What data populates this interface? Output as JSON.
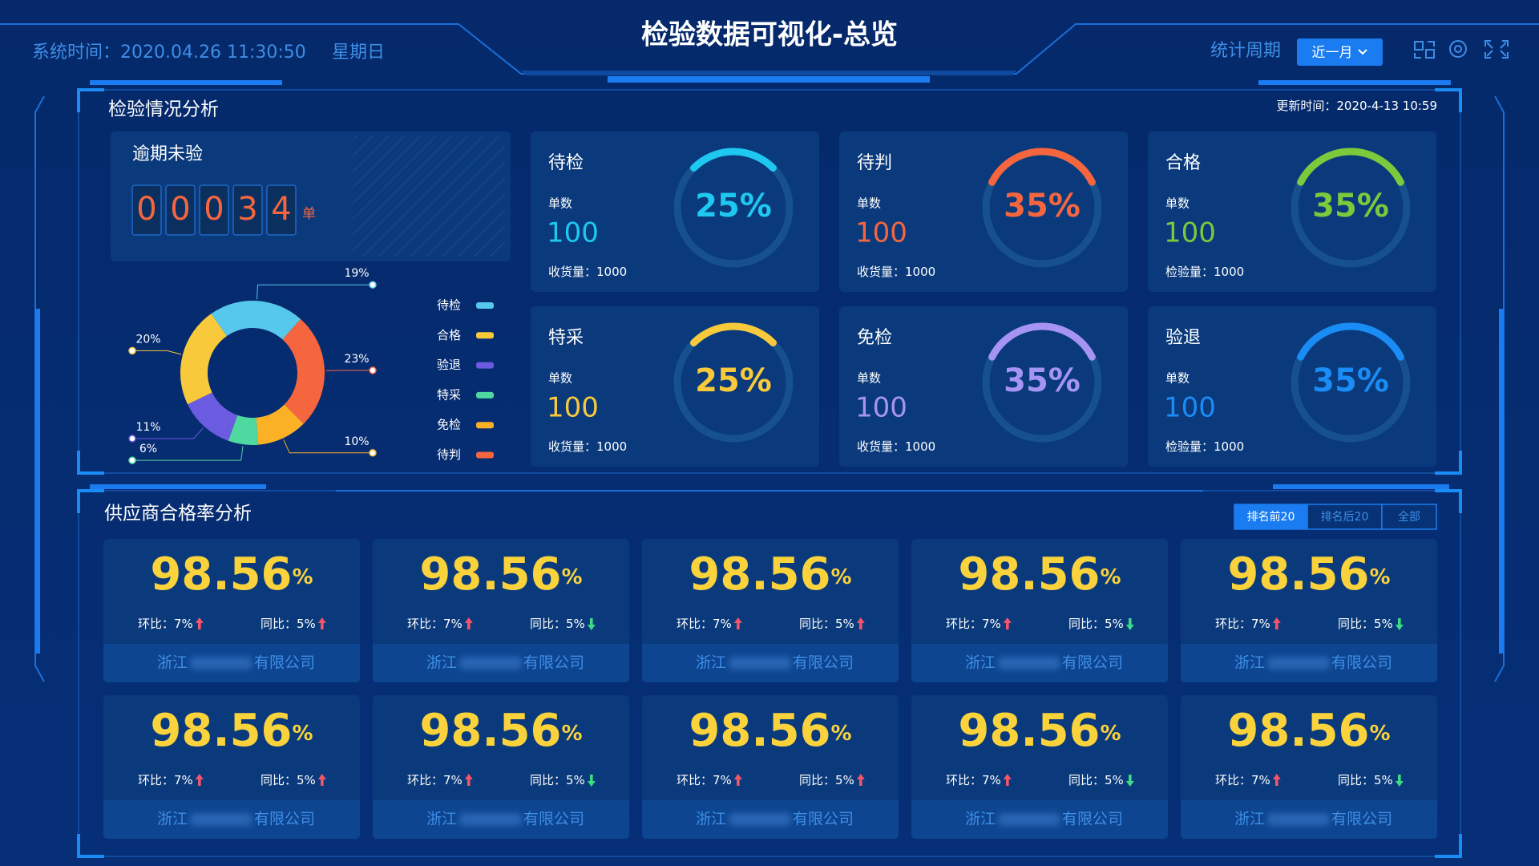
{
  "header": {
    "title": "检验数据可视化-总览",
    "time_label": "系统时间：",
    "time": "2020.04.26 11:30:50",
    "weekday": "星期日",
    "period_label": "统计周期",
    "period": "近一月"
  },
  "inspection": {
    "title": "检验情况分析",
    "update_label": "更新时间：",
    "update_time": "2020-4-13 10:59",
    "overdue": {
      "label": "逾期未验",
      "digits": [
        "0",
        "0",
        "0",
        "3",
        "4"
      ],
      "unit": "单"
    },
    "distribution": {
      "legend": [
        {
          "name": "待检",
          "color": "#56c8ec"
        },
        {
          "name": "合格",
          "color": "#f8c93a"
        },
        {
          "name": "验退",
          "color": "#6a5be0"
        },
        {
          "name": "特采",
          "color": "#4fd8a0"
        },
        {
          "name": "免检",
          "color": "#fbb126"
        },
        {
          "name": "待判",
          "color": "#f5663f"
        }
      ],
      "segments": [
        {
          "value": 19,
          "label": "19%",
          "color": "#56c8ec"
        },
        {
          "value": 23,
          "label": "23%",
          "color": "#f5663f"
        },
        {
          "value": 10,
          "label": "10%",
          "color": "#fbb126"
        },
        {
          "value": 6,
          "label": "6%",
          "color": "#4fd8a0"
        },
        {
          "value": 11,
          "label": "11%",
          "color": "#6a5be0"
        },
        {
          "value": 20,
          "label": "20%",
          "color": "#f8c93a"
        }
      ]
    },
    "cards": [
      {
        "name": "待检",
        "count_label": "单数",
        "count": "100",
        "sub_label": "收货量：",
        "sub_value": "1000",
        "percent": 25,
        "percent_label": "25%",
        "color": "#1ec8f0"
      },
      {
        "name": "待判",
        "count_label": "单数",
        "count": "100",
        "sub_label": "收货量：",
        "sub_value": "1000",
        "percent": 35,
        "percent_label": "35%",
        "color": "#f5663f"
      },
      {
        "name": "合格",
        "count_label": "单数",
        "count": "100",
        "sub_label": "检验量：",
        "sub_value": "1000",
        "percent": 35,
        "percent_label": "35%",
        "color": "#7cc93c"
      },
      {
        "name": "特采",
        "count_label": "单数",
        "count": "100",
        "sub_label": "收货量：",
        "sub_value": "1000",
        "percent": 25,
        "percent_label": "25%",
        "color": "#f8c93a"
      },
      {
        "name": "免检",
        "count_label": "单数",
        "count": "100",
        "sub_label": "收货量：",
        "sub_value": "1000",
        "percent": 35,
        "percent_label": "35%",
        "color": "#a694f4"
      },
      {
        "name": "验退",
        "count_label": "单数",
        "count": "100",
        "sub_label": "检验量：",
        "sub_value": "1000",
        "percent": 35,
        "percent_label": "35%",
        "color": "#1a8cf5"
      }
    ]
  },
  "supplier": {
    "title": "供应商合格率分析",
    "tabs": [
      "排名前20",
      "排名后20",
      "全部"
    ],
    "active_tab": 0,
    "cards": [
      {
        "rate": "98.56",
        "rate_unit": "%",
        "mom_label": "环比：",
        "mom": "7%",
        "mom_trend": "up",
        "yoy_label": "同比：",
        "yoy": "5%",
        "yoy_trend": "up",
        "company_prefix": "浙江",
        "company_suffix": "有限公司"
      },
      {
        "rate": "98.56",
        "rate_unit": "%",
        "mom_label": "环比：",
        "mom": "7%",
        "mom_trend": "up",
        "yoy_label": "同比：",
        "yoy": "5%",
        "yoy_trend": "down",
        "company_prefix": "浙江",
        "company_suffix": "有限公司"
      },
      {
        "rate": "98.56",
        "rate_unit": "%",
        "mom_label": "环比：",
        "mom": "7%",
        "mom_trend": "up",
        "yoy_label": "同比：",
        "yoy": "5%",
        "yoy_trend": "up",
        "company_prefix": "浙江",
        "company_suffix": "有限公司"
      },
      {
        "rate": "98.56",
        "rate_unit": "%",
        "mom_label": "环比：",
        "mom": "7%",
        "mom_trend": "up",
        "yoy_label": "同比：",
        "yoy": "5%",
        "yoy_trend": "down",
        "company_prefix": "浙江",
        "company_suffix": "有限公司"
      },
      {
        "rate": "98.56",
        "rate_unit": "%",
        "mom_label": "环比：",
        "mom": "7%",
        "mom_trend": "up",
        "yoy_label": "同比：",
        "yoy": "5%",
        "yoy_trend": "down",
        "company_prefix": "浙江",
        "company_suffix": "有限公司"
      },
      {
        "rate": "98.56",
        "rate_unit": "%",
        "mom_label": "环比：",
        "mom": "7%",
        "mom_trend": "up",
        "yoy_label": "同比：",
        "yoy": "5%",
        "yoy_trend": "up",
        "company_prefix": "浙江",
        "company_suffix": "有限公司"
      },
      {
        "rate": "98.56",
        "rate_unit": "%",
        "mom_label": "环比：",
        "mom": "7%",
        "mom_trend": "up",
        "yoy_label": "同比：",
        "yoy": "5%",
        "yoy_trend": "down",
        "company_prefix": "浙江",
        "company_suffix": "有限公司"
      },
      {
        "rate": "98.56",
        "rate_unit": "%",
        "mom_label": "环比：",
        "mom": "7%",
        "mom_trend": "up",
        "yoy_label": "同比：",
        "yoy": "5%",
        "yoy_trend": "up",
        "company_prefix": "浙江",
        "company_suffix": "有限公司"
      },
      {
        "rate": "98.56",
        "rate_unit": "%",
        "mom_label": "环比：",
        "mom": "7%",
        "mom_trend": "up",
        "yoy_label": "同比：",
        "yoy": "5%",
        "yoy_trend": "down",
        "company_prefix": "浙江",
        "company_suffix": "有限公司"
      },
      {
        "rate": "98.56",
        "rate_unit": "%",
        "mom_label": "环比：",
        "mom": "7%",
        "mom_trend": "up",
        "yoy_label": "同比：",
        "yoy": "5%",
        "yoy_trend": "down",
        "company_prefix": "浙江",
        "company_suffix": "有限公司"
      }
    ]
  }
}
